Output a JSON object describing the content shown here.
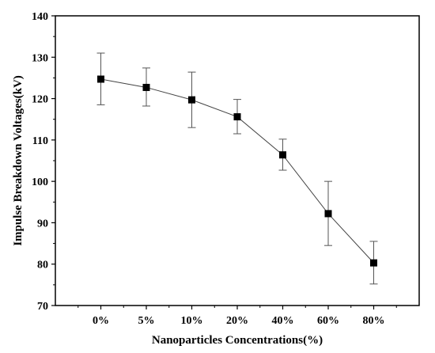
{
  "chart_data": {
    "type": "line",
    "title": "",
    "xlabel": "Nanoparticles Concentrations(%)",
    "ylabel": "Impulse Breakdown Voltages(kV)",
    "categories": [
      "0%",
      "5%",
      "10%",
      "20%",
      "40%",
      "60%",
      "80%"
    ],
    "series": [
      {
        "values": [
          124.7,
          122.7,
          119.7,
          115.6,
          106.4,
          92.2,
          80.3
        ],
        "error_low": [
          118.5,
          118.2,
          113.0,
          111.5,
          102.7,
          84.5,
          75.2
        ],
        "error_high": [
          131.0,
          127.4,
          126.4,
          119.8,
          110.2,
          100.0,
          85.5
        ],
        "marker": "square",
        "color": "#000000"
      }
    ],
    "ylim": [
      70,
      140
    ],
    "yticks": [
      70,
      80,
      90,
      100,
      110,
      120,
      130,
      140
    ],
    "grid": false,
    "legend": "none"
  }
}
